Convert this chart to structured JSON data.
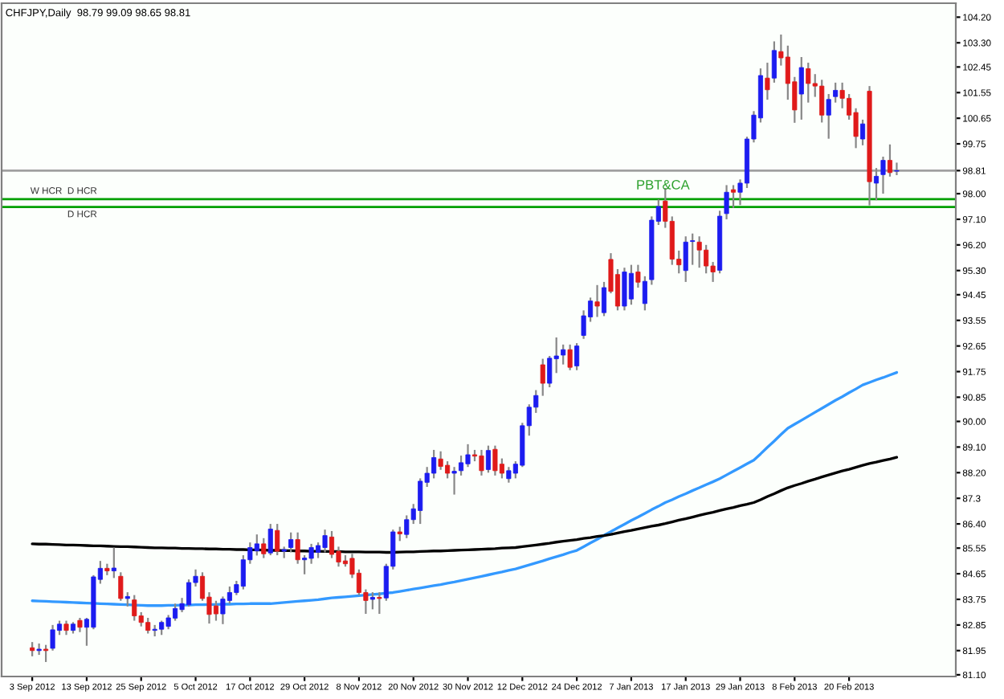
{
  "chart_data": {
    "type": "candlestick",
    "title": "CHFJPY,Daily  98.79 99.09 98.65 98.81",
    "categories": [
      "3 Sep 2012",
      null,
      null,
      null,
      null,
      null,
      null,
      null,
      "13 Sep 2012",
      null,
      null,
      null,
      null,
      null,
      null,
      null,
      "25 Sep 2012",
      null,
      null,
      null,
      null,
      null,
      null,
      null,
      "5 Oct 2012",
      null,
      null,
      null,
      null,
      null,
      null,
      null,
      "17 Oct 2012",
      null,
      null,
      null,
      null,
      null,
      null,
      null,
      "29 Oct 2012",
      null,
      null,
      null,
      null,
      null,
      null,
      null,
      "8 Nov 2012",
      null,
      null,
      null,
      null,
      null,
      null,
      null,
      "20 Nov 2012",
      null,
      null,
      null,
      null,
      null,
      null,
      null,
      "30 Nov 2012",
      null,
      null,
      null,
      null,
      null,
      null,
      null,
      "12 Dec 2012",
      null,
      null,
      null,
      null,
      null,
      null,
      null,
      "24 Dec 2012",
      null,
      null,
      null,
      null,
      null,
      null,
      null,
      "7 Jan 2013",
      null,
      null,
      null,
      null,
      null,
      null,
      null,
      "17 Jan 2013",
      null,
      null,
      null,
      null,
      null,
      null,
      null,
      "29 Jan 2013",
      null,
      null,
      null,
      null,
      null,
      null,
      null,
      "8 Feb 2013",
      null,
      null,
      null,
      null,
      null,
      null,
      null,
      "20 Feb 2013",
      null,
      null,
      null,
      null,
      null,
      null,
      null
    ],
    "ohlc": [
      [
        82.05,
        82.25,
        81.75,
        81.95
      ],
      [
        81.95,
        82.2,
        81.8,
        82.0
      ],
      [
        82.0,
        82.15,
        81.55,
        81.95
      ],
      [
        82.03,
        82.85,
        81.95,
        82.68
      ],
      [
        82.66,
        83.0,
        82.5,
        82.88
      ],
      [
        82.88,
        83.0,
        82.5,
        82.66
      ],
      [
        82.66,
        82.95,
        82.55,
        82.88
      ],
      [
        83.01,
        83.1,
        82.6,
        82.77
      ],
      [
        82.77,
        83.1,
        82.12,
        83.05
      ],
      [
        82.77,
        84.6,
        82.7,
        84.54
      ],
      [
        84.45,
        85.1,
        84.3,
        84.84
      ],
      [
        84.84,
        85.0,
        84.6,
        84.75
      ],
      [
        84.75,
        85.57,
        84.5,
        84.85
      ],
      [
        84.56,
        84.7,
        83.7,
        83.78
      ],
      [
        83.78,
        84.0,
        83.5,
        83.85
      ],
      [
        83.73,
        83.9,
        83.0,
        83.17
      ],
      [
        83.17,
        83.3,
        82.8,
        82.94
      ],
      [
        82.94,
        83.1,
        82.55,
        82.66
      ],
      [
        82.66,
        82.85,
        82.45,
        82.7
      ],
      [
        82.7,
        83.0,
        82.5,
        82.94
      ],
      [
        82.8,
        83.2,
        82.7,
        83.1
      ],
      [
        83.09,
        83.6,
        83.0,
        83.43
      ],
      [
        83.39,
        83.8,
        83.3,
        83.6
      ],
      [
        83.56,
        84.45,
        83.5,
        84.34
      ],
      [
        84.34,
        84.8,
        84.2,
        84.56
      ],
      [
        84.56,
        84.7,
        83.7,
        83.78
      ],
      [
        83.83,
        84.0,
        82.9,
        83.22
      ],
      [
        83.52,
        83.7,
        83.0,
        83.24
      ],
      [
        83.24,
        83.85,
        82.88,
        83.76
      ],
      [
        83.71,
        84.2,
        83.6,
        83.99
      ],
      [
        83.99,
        84.4,
        83.9,
        84.27
      ],
      [
        84.21,
        85.3,
        84.1,
        85.14
      ],
      [
        85.14,
        85.75,
        85.0,
        85.57
      ],
      [
        85.45,
        86.03,
        85.29,
        85.7
      ],
      [
        85.7,
        85.9,
        85.2,
        85.35
      ],
      [
        85.38,
        86.4,
        85.3,
        86.22
      ],
      [
        86.17,
        86.4,
        85.3,
        85.44
      ],
      [
        85.44,
        85.6,
        85.2,
        85.5
      ],
      [
        85.57,
        86.1,
        85.4,
        85.85
      ],
      [
        85.85,
        86.1,
        85.0,
        85.14
      ],
      [
        85.14,
        85.3,
        84.63,
        85.2
      ],
      [
        85.19,
        85.7,
        85.0,
        85.57
      ],
      [
        85.4,
        85.75,
        85.2,
        85.64
      ],
      [
        85.57,
        86.2,
        85.4,
        85.99
      ],
      [
        85.94,
        86.15,
        85.2,
        85.33
      ],
      [
        85.44,
        85.6,
        84.9,
        85.06
      ],
      [
        85.1,
        85.3,
        84.9,
        85.0
      ],
      [
        85.19,
        85.35,
        84.5,
        84.63
      ],
      [
        84.67,
        84.8,
        83.9,
        83.99
      ],
      [
        83.99,
        84.1,
        83.24,
        83.71
      ],
      [
        83.75,
        84.0,
        83.4,
        83.82
      ],
      [
        83.82,
        84.0,
        83.24,
        83.78
      ],
      [
        83.8,
        85.0,
        83.7,
        84.91
      ],
      [
        84.91,
        86.2,
        84.8,
        86.12
      ],
      [
        86.12,
        86.3,
        85.8,
        86.05
      ],
      [
        86.03,
        86.7,
        85.9,
        86.55
      ],
      [
        86.55,
        87.1,
        86.4,
        86.93
      ],
      [
        86.87,
        88.0,
        86.4,
        87.9
      ],
      [
        87.86,
        88.4,
        87.7,
        88.18
      ],
      [
        88.18,
        89.0,
        88.0,
        88.73
      ],
      [
        88.68,
        88.95,
        88.3,
        88.42
      ],
      [
        88.46,
        88.6,
        88.0,
        88.18
      ],
      [
        88.18,
        88.4,
        87.43,
        88.25
      ],
      [
        88.27,
        88.8,
        88.1,
        88.55
      ],
      [
        88.51,
        89.2,
        88.4,
        88.83
      ],
      [
        88.83,
        89.0,
        88.6,
        88.78
      ],
      [
        88.79,
        89.0,
        88.1,
        88.27
      ],
      [
        88.31,
        89.15,
        88.2,
        88.98
      ],
      [
        89.02,
        89.15,
        88.1,
        88.27
      ],
      [
        88.5,
        88.7,
        88.0,
        88.18
      ],
      [
        87.99,
        88.4,
        87.85,
        88.27
      ],
      [
        88.18,
        88.6,
        88.0,
        88.5
      ],
      [
        88.46,
        89.95,
        88.4,
        89.85
      ],
      [
        89.85,
        90.6,
        89.5,
        90.5
      ],
      [
        90.5,
        91.1,
        90.3,
        90.91
      ],
      [
        91.99,
        92.2,
        90.9,
        91.34
      ],
      [
        91.34,
        92.3,
        91.2,
        92.22
      ],
      [
        92.2,
        92.95,
        91.7,
        92.3
      ],
      [
        92.33,
        92.7,
        92.0,
        92.52
      ],
      [
        92.52,
        92.7,
        91.8,
        91.9
      ],
      [
        91.95,
        92.75,
        91.8,
        92.65
      ],
      [
        93.02,
        93.9,
        92.9,
        93.71
      ],
      [
        93.67,
        94.35,
        93.5,
        94.23
      ],
      [
        94.2,
        94.79,
        93.67,
        94.05
      ],
      [
        93.82,
        94.9,
        93.7,
        94.7
      ],
      [
        95.69,
        95.91,
        94.5,
        94.57
      ],
      [
        95.16,
        95.35,
        93.9,
        94.05
      ],
      [
        94.05,
        95.4,
        93.9,
        95.25
      ],
      [
        94.3,
        95.5,
        94.1,
        95.2
      ],
      [
        95.25,
        95.5,
        94.7,
        94.89
      ],
      [
        94.14,
        95.1,
        93.9,
        94.92
      ],
      [
        94.98,
        97.2,
        94.8,
        97.07
      ],
      [
        97.03,
        97.8,
        96.9,
        97.55
      ],
      [
        97.74,
        98.2,
        96.8,
        97.03
      ],
      [
        97.03,
        97.2,
        95.5,
        95.7
      ],
      [
        95.7,
        96.0,
        95.2,
        95.5
      ],
      [
        95.3,
        96.5,
        94.9,
        96.3
      ],
      [
        96.32,
        96.6,
        95.5,
        96.35
      ],
      [
        96.3,
        96.5,
        95.4,
        96.02
      ],
      [
        96.02,
        96.2,
        95.2,
        95.46
      ],
      [
        95.46,
        95.6,
        94.9,
        95.25
      ],
      [
        95.31,
        97.4,
        95.2,
        97.21
      ],
      [
        97.3,
        98.3,
        97.1,
        98.05
      ],
      [
        98.14,
        98.3,
        97.5,
        98.05
      ],
      [
        98.05,
        98.5,
        97.6,
        98.37
      ],
      [
        98.37,
        100.0,
        98.2,
        99.92
      ],
      [
        99.92,
        100.9,
        99.8,
        100.76
      ],
      [
        100.66,
        102.4,
        100.5,
        102.15
      ],
      [
        102.06,
        102.6,
        101.3,
        101.65
      ],
      [
        102.06,
        103.35,
        101.9,
        103.03
      ],
      [
        102.99,
        103.59,
        102.5,
        102.77
      ],
      [
        102.8,
        103.2,
        101.3,
        101.87
      ],
      [
        101.93,
        102.1,
        100.49,
        100.94
      ],
      [
        101.5,
        102.8,
        100.6,
        102.43
      ],
      [
        102.39,
        102.6,
        101.2,
        101.87
      ],
      [
        101.87,
        102.2,
        101.4,
        101.78
      ],
      [
        101.78,
        102.0,
        100.5,
        100.76
      ],
      [
        100.76,
        101.5,
        99.93,
        101.31
      ],
      [
        101.41,
        101.9,
        101.2,
        101.63
      ],
      [
        101.63,
        101.9,
        101.0,
        101.35
      ],
      [
        101.35,
        101.5,
        100.6,
        100.76
      ],
      [
        100.85,
        101.0,
        99.6,
        100.01
      ],
      [
        99.92,
        100.6,
        99.7,
        100.45
      ],
      [
        101.6,
        101.78,
        97.59,
        98.42
      ],
      [
        98.37,
        98.9,
        97.77,
        98.61
      ],
      [
        98.67,
        99.3,
        98.0,
        99.17
      ],
      [
        99.17,
        99.73,
        98.6,
        98.74
      ],
      [
        98.79,
        99.09,
        98.65,
        98.81
      ]
    ],
    "colors": [
      "#e01a1a",
      "#1c1cf0",
      "#e01a1a",
      "#1c1cf0",
      "#1c1cf0",
      "#e01a1a",
      "#1c1cf0",
      "#e01a1a",
      "#1c1cf0",
      "#1c1cf0",
      "#1c1cf0",
      "#e01a1a",
      "#1c1cf0",
      "#e01a1a",
      "#1c1cf0",
      "#e01a1a",
      "#e01a1a",
      "#e01a1a",
      "#1c1cf0",
      "#1c1cf0",
      "#1c1cf0",
      "#1c1cf0",
      "#1c1cf0",
      "#1c1cf0",
      "#1c1cf0",
      "#e01a1a",
      "#e01a1a",
      "#e01a1a",
      "#1c1cf0",
      "#1c1cf0",
      "#1c1cf0",
      "#1c1cf0",
      "#1c1cf0",
      "#1c1cf0",
      "#e01a1a",
      "#1c1cf0",
      "#e01a1a",
      "#1c1cf0",
      "#1c1cf0",
      "#e01a1a",
      "#1c1cf0",
      "#1c1cf0",
      "#1c1cf0",
      "#1c1cf0",
      "#e01a1a",
      "#e01a1a",
      "#e01a1a",
      "#e01a1a",
      "#e01a1a",
      "#e01a1a",
      "#1c1cf0",
      "#e01a1a",
      "#1c1cf0",
      "#1c1cf0",
      "#e01a1a",
      "#1c1cf0",
      "#1c1cf0",
      "#1c1cf0",
      "#1c1cf0",
      "#1c1cf0",
      "#e01a1a",
      "#e01a1a",
      "#1c1cf0",
      "#1c1cf0",
      "#1c1cf0",
      "#e01a1a",
      "#e01a1a",
      "#1c1cf0",
      "#e01a1a",
      "#e01a1a",
      "#1c1cf0",
      "#1c1cf0",
      "#1c1cf0",
      "#1c1cf0",
      "#1c1cf0",
      "#e01a1a",
      "#1c1cf0",
      "#1c1cf0",
      "#1c1cf0",
      "#e01a1a",
      "#1c1cf0",
      "#1c1cf0",
      "#1c1cf0",
      "#e01a1a",
      "#1c1cf0",
      "#e01a1a",
      "#e01a1a",
      "#1c1cf0",
      "#1c1cf0",
      "#e01a1a",
      "#1c1cf0",
      "#1c1cf0",
      "#1c1cf0",
      "#e01a1a",
      "#e01a1a",
      "#e01a1a",
      "#1c1cf0",
      "#1c1cf0",
      "#e01a1a",
      "#e01a1a",
      "#e01a1a",
      "#1c1cf0",
      "#1c1cf0",
      "#e01a1a",
      "#1c1cf0",
      "#1c1cf0",
      "#1c1cf0",
      "#1c1cf0",
      "#e01a1a",
      "#1c1cf0",
      "#e01a1a",
      "#e01a1a",
      "#e01a1a",
      "#1c1cf0",
      "#e01a1a",
      "#e01a1a",
      "#e01a1a",
      "#1c1cf0",
      "#1c1cf0",
      "#e01a1a",
      "#e01a1a",
      "#e01a1a",
      "#1c1cf0",
      "#e01a1a",
      "#1c1cf0",
      "#1c1cf0",
      "#e01a1a",
      "#1c1cf0"
    ],
    "series": [
      {
        "type": "line",
        "color": "#3399ff",
        "values": [
          83.7,
          83.69,
          83.68,
          83.67,
          83.66,
          83.65,
          83.64,
          83.63,
          83.62,
          83.61,
          83.6,
          83.59,
          83.58,
          83.57,
          83.56,
          83.55,
          83.54,
          83.53,
          83.53,
          83.53,
          83.54,
          83.54,
          83.55,
          83.55,
          83.56,
          83.56,
          83.57,
          83.57,
          83.58,
          83.58,
          83.59,
          83.59,
          83.6,
          83.6,
          83.6,
          83.6,
          83.62,
          83.64,
          83.66,
          83.68,
          83.7,
          83.72,
          83.74,
          83.77,
          83.8,
          83.82,
          83.84,
          83.86,
          83.88,
          83.9,
          83.92,
          83.94,
          83.97,
          83.99,
          84.03,
          84.07,
          84.11,
          84.15,
          84.19,
          84.23,
          84.27,
          84.32,
          84.36,
          84.41,
          84.46,
          84.51,
          84.56,
          84.61,
          84.66,
          84.71,
          84.77,
          84.82,
          84.89,
          84.96,
          85.03,
          85.1,
          85.18,
          85.25,
          85.32,
          85.4,
          85.47,
          85.6,
          85.73,
          85.86,
          86.0,
          86.13,
          86.26,
          86.39,
          86.52,
          86.64,
          86.77,
          86.9,
          87.02,
          87.15,
          87.25,
          87.36,
          87.46,
          87.57,
          87.67,
          87.78,
          87.88,
          87.99,
          88.12,
          88.25,
          88.38,
          88.51,
          88.64,
          88.86,
          89.09,
          89.31,
          89.54,
          89.76,
          89.9,
          90.04,
          90.18,
          90.32,
          90.46,
          90.6,
          90.74,
          90.87,
          91.01,
          91.14,
          91.28,
          91.37,
          91.46,
          91.54,
          91.63,
          91.72
        ]
      },
      {
        "type": "line",
        "color": "#000000",
        "values": [
          85.7,
          85.69,
          85.69,
          85.68,
          85.67,
          85.66,
          85.66,
          85.65,
          85.64,
          85.63,
          85.63,
          85.62,
          85.61,
          85.6,
          85.6,
          85.59,
          85.58,
          85.57,
          85.56,
          85.56,
          85.55,
          85.55,
          85.54,
          85.54,
          85.53,
          85.53,
          85.52,
          85.52,
          85.51,
          85.51,
          85.5,
          85.5,
          85.49,
          85.49,
          85.48,
          85.47,
          85.47,
          85.46,
          85.46,
          85.45,
          85.45,
          85.44,
          85.44,
          85.43,
          85.43,
          85.43,
          85.42,
          85.42,
          85.42,
          85.41,
          85.41,
          85.41,
          85.4,
          85.4,
          85.41,
          85.42,
          85.42,
          85.43,
          85.44,
          85.45,
          85.45,
          85.46,
          85.47,
          85.48,
          85.49,
          85.5,
          85.51,
          85.52,
          85.53,
          85.55,
          85.56,
          85.57,
          85.6,
          85.63,
          85.66,
          85.69,
          85.72,
          85.76,
          85.79,
          85.82,
          85.85,
          85.89,
          85.92,
          85.96,
          85.99,
          86.03,
          86.08,
          86.13,
          86.17,
          86.22,
          86.27,
          86.32,
          86.36,
          86.41,
          86.47,
          86.53,
          86.58,
          86.64,
          86.7,
          86.76,
          86.81,
          86.87,
          86.93,
          86.98,
          87.04,
          87.09,
          87.15,
          87.25,
          87.36,
          87.46,
          87.57,
          87.67,
          87.75,
          87.82,
          87.9,
          87.97,
          88.05,
          88.12,
          88.19,
          88.26,
          88.32,
          88.39,
          88.46,
          88.52,
          88.57,
          88.63,
          88.68,
          88.74
        ]
      }
    ],
    "ylim": [
      81.04,
      104.69
    ],
    "yticks": [
      {
        "value": 81.1,
        "label": "81.10"
      },
      81.95,
      82.85,
      83.75,
      84.65,
      85.55,
      {
        "value": 86.4,
        "label": "86.40"
      },
      87.3,
      {
        "value": 88.2,
        "label": "88.20"
      },
      {
        "value": 89.1,
        "label": "89.10"
      },
      {
        "value": 90,
        "label": "90.00"
      },
      90.85,
      91.75,
      92.65,
      93.55,
      94.45,
      {
        "value": 95.3,
        "label": "95.30"
      },
      {
        "value": 96.2,
        "label": "96.20"
      },
      {
        "value": 97.1,
        "label": "97.10"
      },
      {
        "value": 98,
        "label": "98.00"
      },
      98.81,
      99.75,
      100.65,
      101.55,
      102.45,
      {
        "value": 103.3,
        "label": "103.30"
      },
      {
        "value": 104.2,
        "label": "104.20"
      }
    ],
    "ref_lines": [
      {
        "axis": "y",
        "value": 98.81,
        "color": "#a0a0a0"
      },
      {
        "axis": "y",
        "value": 97.81,
        "label": "W HCR  D HCR",
        "color": "#00a000"
      },
      {
        "axis": "y",
        "value": 97.53,
        "label": "D HCR",
        "color": "#00a000"
      }
    ],
    "annotations": [
      "PBT&CA"
    ],
    "grid": false,
    "legend": false
  }
}
